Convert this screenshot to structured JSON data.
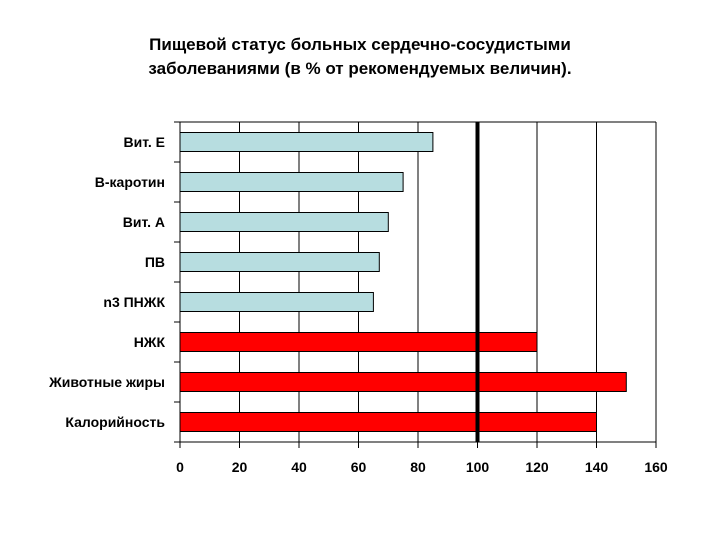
{
  "chart_data": {
    "type": "bar",
    "orientation": "horizontal",
    "title_line1": "Пищевой статус больных сердечно-сосудистыми",
    "title_line2": "заболеваниями (в % от рекомендуемых величин).",
    "categories": [
      "Вит. Е",
      "В-каротин",
      "Вит. А",
      "ПВ",
      "n3 ПНЖК",
      "НЖК",
      "Животные жиры",
      "Калорийность"
    ],
    "values": [
      85,
      75,
      70,
      67,
      65,
      120,
      150,
      140
    ],
    "bar_colors": [
      "#b7dde0",
      "#b7dde0",
      "#b7dde0",
      "#b7dde0",
      "#b7dde0",
      "#ff0000",
      "#ff0000",
      "#ff0000"
    ],
    "xlim": [
      0,
      160
    ],
    "x_ticks": [
      "0",
      "20",
      "40",
      "60",
      "80",
      "100",
      "120",
      "140",
      "160"
    ],
    "reference_line": 100,
    "grid": "vertical",
    "legend": "none"
  }
}
